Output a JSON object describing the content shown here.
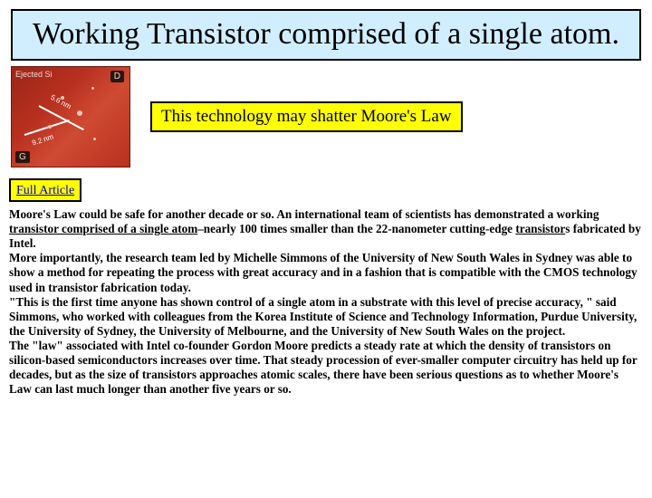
{
  "title": "Working Transistor comprised of a single atom.",
  "subtitle": "This technology may shatter Moore's Law",
  "link_label": "Full Article",
  "thumb": {
    "corner": "Ejected\nSi",
    "d": "D",
    "g": "G",
    "nm1": "5.6 nm",
    "nm2": "9.2 nm"
  },
  "body": {
    "p1a": "Moore's Law could be safe for another decade or so. An international team of scientists has demonstrated a working ",
    "p1_hl": "transistor comprised of a single atom",
    "p1b": "–nearly 100 times smaller than the 22-nanometer cutting-edge ",
    "p1_hl2": "transistor",
    "p1c": "s fabricated by Intel.",
    "p2": "More importantly, the research team led by Michelle Simmons of the University of New South Wales in Sydney was able to show a method for repeating the process with great accuracy and in a fashion that is compatible with the CMOS technology used in transistor fabrication today.",
    "p3": "\"This is the first time anyone has shown control of a single atom in a substrate with this level of precise accuracy, \" said Simmons, who worked with colleagues from the Korea Institute of Science and Technology Information, Purdue University, the University of Sydney, the University of Melbourne, and the University of New South Wales on the project.",
    "p4": "The \"law\" associated with Intel co-founder Gordon Moore predicts a steady rate at which the density of transistors on silicon-based semiconductors increases over time. That steady procession of ever-smaller computer circuitry has held up for decades, but as the size of transistors approaches atomic scales, there have been serious questions as to whether Moore's Law can last much longer than another five years or so."
  }
}
